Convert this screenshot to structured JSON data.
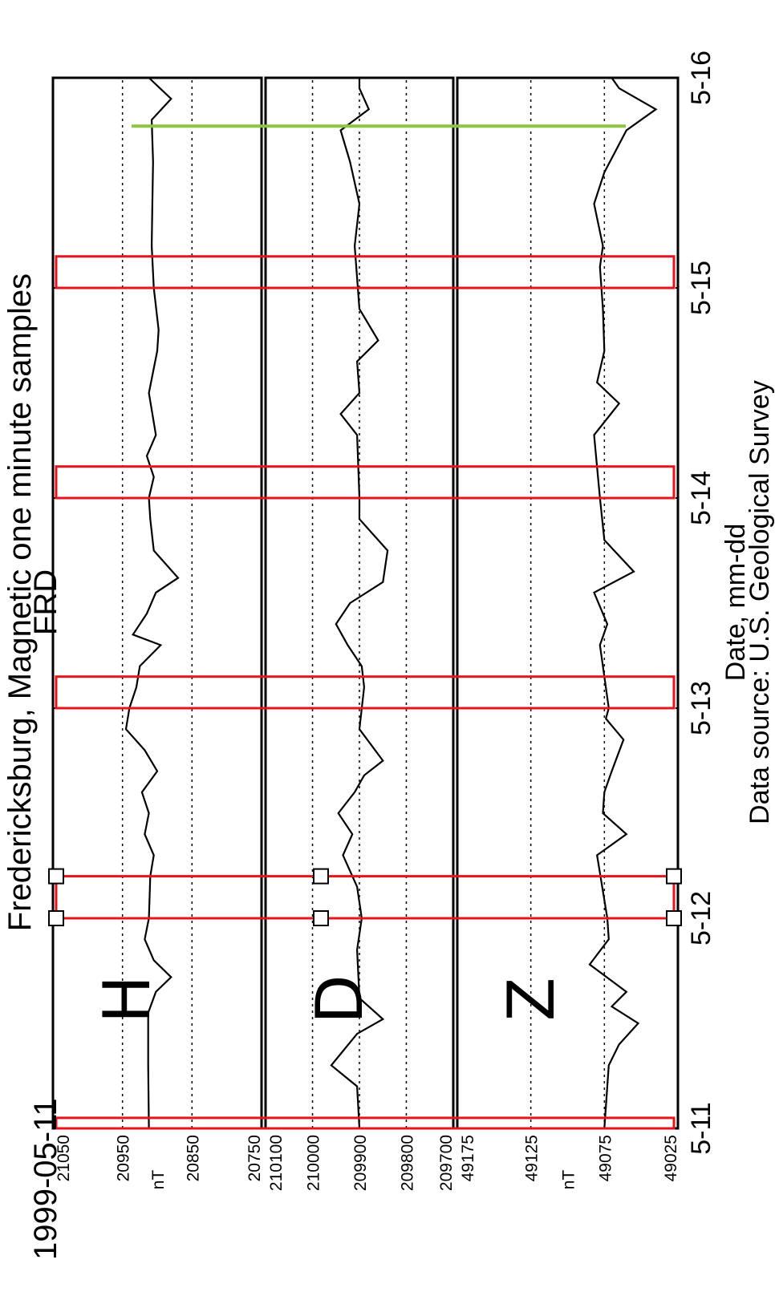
{
  "chart_data": {
    "type": "line",
    "title": "Fredericksburg, Magnetic one minute samples",
    "subtitle": "FRD",
    "start_date": "1999-05-11",
    "xlabel": "Date, mm-dd",
    "source": "Data source: U.S. Geological Survey",
    "x_ticks": [
      "5-11",
      "5-12",
      "5-13",
      "5-14",
      "5-15",
      "5-16"
    ],
    "xlim": [
      0,
      5
    ],
    "colors": {
      "line": "#000000",
      "highlight_box": "#e8141c",
      "marker": "#8cc63f"
    },
    "panels": [
      {
        "component": "H",
        "unit": "nT",
        "ylim": [
          20750,
          21050
        ],
        "y_ticks": [
          "21050",
          "20950",
          "20850",
          "20750"
        ],
        "reference_lines": [
          20950,
          20850
        ],
        "series": [
          {
            "values": [
              [
                0,
                20912
              ],
              [
                0.3,
                20913
              ],
              [
                0.55,
                20913
              ],
              [
                0.65,
                20902
              ],
              [
                0.72,
                20880
              ],
              [
                0.8,
                20905
              ],
              [
                0.9,
                20918
              ],
              [
                1.0,
                20912
              ],
              [
                1.2,
                20910
              ],
              [
                1.3,
                20905
              ],
              [
                1.4,
                20918
              ],
              [
                1.5,
                20912
              ],
              [
                1.6,
                20922
              ],
              [
                1.7,
                20900
              ],
              [
                1.8,
                20918
              ],
              [
                1.9,
                20945
              ],
              [
                2.0,
                20940
              ],
              [
                2.1,
                20930
              ],
              [
                2.2,
                20925
              ],
              [
                2.3,
                20895
              ],
              [
                2.35,
                20935
              ],
              [
                2.45,
                20915
              ],
              [
                2.55,
                20902
              ],
              [
                2.62,
                20870
              ],
              [
                2.75,
                20905
              ],
              [
                2.9,
                20910
              ],
              [
                3.0,
                20912
              ],
              [
                3.1,
                20905
              ],
              [
                3.2,
                20915
              ],
              [
                3.3,
                20902
              ],
              [
                3.5,
                20912
              ],
              [
                3.7,
                20900
              ],
              [
                3.8,
                20898
              ],
              [
                4.0,
                20905
              ],
              [
                4.2,
                20908
              ],
              [
                4.4,
                20907
              ],
              [
                4.6,
                20906
              ],
              [
                4.8,
                20908
              ],
              [
                4.9,
                20880
              ],
              [
                5.0,
                20912
              ]
            ]
          }
        ]
      },
      {
        "component": "D",
        "unit": "",
        "ylim": [
          209700,
          210100
        ],
        "y_ticks": [
          "210100",
          "210000",
          "209900",
          "209800",
          "209700"
        ],
        "reference_lines": [
          210000,
          209900,
          209800
        ],
        "series": [
          {
            "values": [
              [
                0,
                209900
              ],
              [
                0.2,
                209905
              ],
              [
                0.3,
                209960
              ],
              [
                0.45,
                209905
              ],
              [
                0.52,
                209850
              ],
              [
                0.62,
                209900
              ],
              [
                0.85,
                209905
              ],
              [
                1.0,
                209895
              ],
              [
                1.15,
                209905
              ],
              [
                1.3,
                209935
              ],
              [
                1.4,
                209915
              ],
              [
                1.5,
                209945
              ],
              [
                1.6,
                209910
              ],
              [
                1.68,
                209890
              ],
              [
                1.75,
                209850
              ],
              [
                1.9,
                209900
              ],
              [
                2.1,
                209890
              ],
              [
                2.2,
                209895
              ],
              [
                2.3,
                209925
              ],
              [
                2.4,
                209950
              ],
              [
                2.5,
                209920
              ],
              [
                2.6,
                209850
              ],
              [
                2.75,
                209840
              ],
              [
                2.9,
                209900
              ],
              [
                3.0,
                209900
              ],
              [
                3.3,
                209905
              ],
              [
                3.4,
                209940
              ],
              [
                3.5,
                209900
              ],
              [
                3.65,
                209905
              ],
              [
                3.75,
                209860
              ],
              [
                3.9,
                209900
              ],
              [
                4.2,
                209910
              ],
              [
                4.4,
                209900
              ],
              [
                4.6,
                209920
              ],
              [
                4.75,
                209940
              ],
              [
                4.85,
                209880
              ],
              [
                4.95,
                209900
              ],
              [
                5.0,
                209900
              ]
            ]
          }
        ]
      },
      {
        "component": "Z",
        "unit": "nT",
        "ylim": [
          49025,
          49175
        ],
        "y_ticks": [
          "49175",
          "49125",
          "49075",
          "49025"
        ],
        "reference_lines": [
          49125,
          49075
        ],
        "series": [
          {
            "values": [
              [
                0,
                49075
              ],
              [
                0.3,
                49072
              ],
              [
                0.4,
                49065
              ],
              [
                0.5,
                49052
              ],
              [
                0.58,
                49070
              ],
              [
                0.65,
                49060
              ],
              [
                0.78,
                49085
              ],
              [
                0.9,
                49072
              ],
              [
                1.0,
                49073
              ],
              [
                1.3,
                49080
              ],
              [
                1.4,
                49060
              ],
              [
                1.5,
                49076
              ],
              [
                1.6,
                49075
              ],
              [
                1.7,
                49070
              ],
              [
                1.85,
                49062
              ],
              [
                1.95,
                49074
              ],
              [
                2.0,
                49072
              ],
              [
                2.3,
                49078
              ],
              [
                2.4,
                49073
              ],
              [
                2.55,
                49082
              ],
              [
                2.65,
                49055
              ],
              [
                2.8,
                49075
              ],
              [
                3.0,
                49078
              ],
              [
                3.3,
                49082
              ],
              [
                3.45,
                49065
              ],
              [
                3.55,
                49080
              ],
              [
                3.7,
                49075
              ],
              [
                3.9,
                49076
              ],
              [
                4.1,
                49078
              ],
              [
                4.2,
                49076
              ],
              [
                4.4,
                49082
              ],
              [
                4.55,
                49075
              ],
              [
                4.75,
                49060
              ],
              [
                4.85,
                49040
              ],
              [
                4.95,
                49065
              ],
              [
                5.0,
                49070
              ]
            ]
          }
        ]
      }
    ],
    "highlight_windows": [
      [
        0,
        0.05
      ],
      [
        1.0,
        1.2
      ],
      [
        2.0,
        2.15
      ],
      [
        3.0,
        3.15
      ],
      [
        4.0,
        4.15
      ]
    ],
    "marker_x": 4.77
  }
}
